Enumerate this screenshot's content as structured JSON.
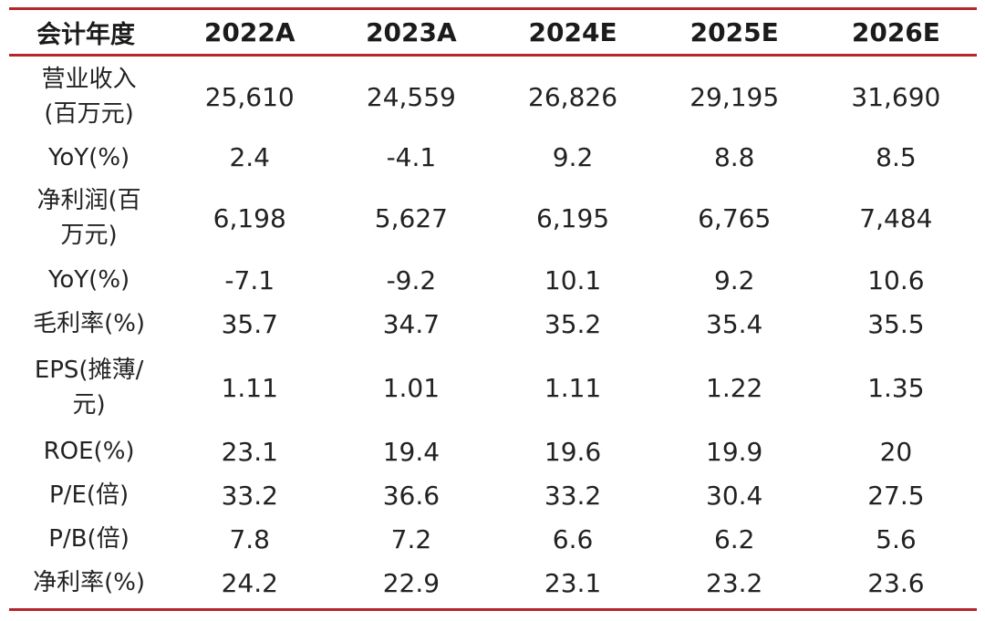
{
  "table": {
    "headers": [
      "会计年度",
      "2022A",
      "2023A",
      "2024E",
      "2025E",
      "2026E"
    ],
    "rows": [
      {
        "label": [
          "营业收入",
          "(百万元)"
        ],
        "values": [
          "25,610",
          "24,559",
          "26,826",
          "29,195",
          "31,690"
        ]
      },
      {
        "label": [
          "YoY(%)"
        ],
        "values": [
          "2.4",
          "-4.1",
          "9.2",
          "8.8",
          "8.5"
        ]
      },
      {
        "label": [
          "净利润(百",
          "万元)"
        ],
        "values": [
          "6,198",
          "5,627",
          "6,195",
          "6,765",
          "7,484"
        ]
      },
      {
        "label": [
          "YoY(%)"
        ],
        "values": [
          "-7.1",
          "-9.2",
          "10.1",
          "9.2",
          "10.6"
        ]
      },
      {
        "label": [
          "毛利率(%)"
        ],
        "values": [
          "35.7",
          "34.7",
          "35.2",
          "35.4",
          "35.5"
        ]
      },
      {
        "label": [
          "EPS(摊薄/",
          "元)"
        ],
        "values": [
          "1.11",
          "1.01",
          "1.11",
          "1.22",
          "1.35"
        ]
      },
      {
        "label": [
          "ROE(%)"
        ],
        "values": [
          "23.1",
          "19.4",
          "19.6",
          "19.9",
          "20"
        ]
      },
      {
        "label": [
          "P/E(倍)"
        ],
        "values": [
          "33.2",
          "36.6",
          "33.2",
          "30.4",
          "27.5"
        ]
      },
      {
        "label": [
          "P/B(倍)"
        ],
        "values": [
          "7.8",
          "7.2",
          "6.6",
          "6.2",
          "5.6"
        ]
      },
      {
        "label": [
          "净利率(%)"
        ],
        "values": [
          "24.2",
          "22.9",
          "23.1",
          "23.2",
          "23.6"
        ]
      }
    ]
  },
  "colors": {
    "rule": "#b3262b",
    "text": "#222222",
    "background": "#ffffff"
  }
}
